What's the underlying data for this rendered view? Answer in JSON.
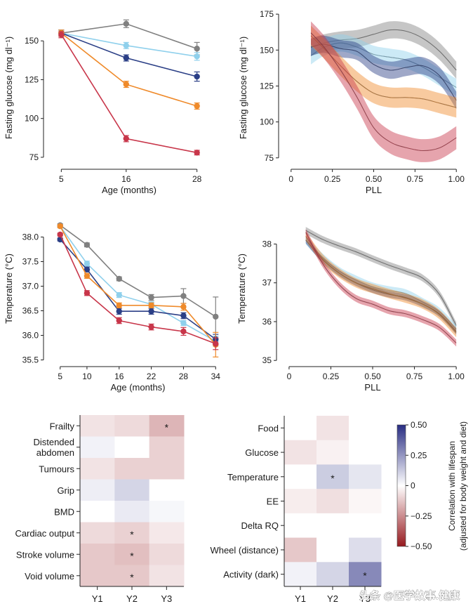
{
  "colors": {
    "grey": "#808080",
    "light_blue": "#8fd0ec",
    "dark_blue": "#2b3f86",
    "orange": "#ef8a2a",
    "red": "#c8364a"
  },
  "watermark": "头条 @医学故事.健康",
  "chart_data": [
    {
      "id": "glucose_age",
      "type": "line",
      "xlabel": "Age (months)",
      "ylabel": "Fasting glucose (mg dl⁻¹)",
      "x": [
        5,
        16,
        28
      ],
      "xticks": [
        "5",
        "16",
        "28"
      ],
      "ylim": [
        70,
        170
      ],
      "yticks": [
        "75",
        "100",
        "125",
        "150"
      ],
      "series": [
        {
          "color": "grey",
          "values": [
            155,
            161,
            145
          ],
          "err": [
            2,
            2.5,
            4
          ]
        },
        {
          "color": "light_blue",
          "values": [
            155,
            147,
            140
          ],
          "err": [
            2,
            2,
            2.5
          ]
        },
        {
          "color": "dark_blue",
          "values": [
            155,
            139,
            127
          ],
          "err": [
            2,
            2,
            3
          ]
        },
        {
          "color": "orange",
          "values": [
            155,
            122,
            108
          ],
          "err": [
            2,
            2,
            2
          ]
        },
        {
          "color": "red",
          "values": [
            154,
            87,
            78
          ],
          "err": [
            2,
            2,
            1.5
          ]
        }
      ]
    },
    {
      "id": "glucose_pll",
      "type": "area",
      "xlabel": "PLL",
      "ylabel": "Fasting glucose (mg dl⁻¹)",
      "xlim": [
        -0.05,
        1.05
      ],
      "xticks": [
        "0",
        "0.25",
        "0.50",
        "0.75",
        "1.00"
      ],
      "ylim": [
        70,
        178
      ],
      "yticks": [
        "75",
        "100",
        "125",
        "150",
        "175"
      ],
      "series": [
        {
          "color": "grey",
          "x": [
            0.12,
            0.2,
            0.3,
            0.4,
            0.5,
            0.6,
            0.7,
            0.8,
            0.9,
            1.0
          ],
          "values": [
            152,
            155,
            157,
            158,
            161,
            164,
            163,
            158,
            149,
            136
          ],
          "band": 6
        },
        {
          "color": "light_blue",
          "x": [
            0.12,
            0.2,
            0.3,
            0.4,
            0.5,
            0.6,
            0.7,
            0.8,
            0.9,
            1.0
          ],
          "values": [
            146,
            152,
            155,
            152,
            147,
            145,
            143,
            138,
            131,
            124
          ],
          "band": 6
        },
        {
          "color": "dark_blue",
          "x": [
            0.12,
            0.2,
            0.3,
            0.4,
            0.5,
            0.6,
            0.7,
            0.8,
            0.9,
            1.0
          ],
          "values": [
            152,
            154,
            151,
            149,
            140,
            136,
            138,
            139,
            132,
            115
          ],
          "band": 6
        },
        {
          "color": "orange",
          "x": [
            0.12,
            0.2,
            0.3,
            0.4,
            0.5,
            0.6,
            0.7,
            0.8,
            0.9,
            1.0
          ],
          "values": [
            160,
            151,
            139,
            128,
            120,
            117,
            117,
            116,
            113,
            110
          ],
          "band": 7
        },
        {
          "color": "red",
          "x": [
            0.12,
            0.2,
            0.3,
            0.4,
            0.5,
            0.6,
            0.7,
            0.8,
            0.9,
            1.0
          ],
          "values": [
            162,
            152,
            136,
            117,
            96,
            86,
            82,
            80,
            82,
            89
          ],
          "band": 8
        }
      ]
    },
    {
      "id": "temperature_age",
      "type": "line",
      "xlabel": "Age (months)",
      "ylabel": "Temperature (°C)",
      "x": [
        5,
        10,
        16,
        22,
        28,
        34
      ],
      "xticks": [
        "5",
        "10",
        "16",
        "22",
        "28",
        "34"
      ],
      "ylim": [
        35.45,
        38.45
      ],
      "yticks": [
        "35.5",
        "36.0",
        "36.5",
        "37.0",
        "37.5",
        "38.0"
      ],
      "series": [
        {
          "color": "grey",
          "values": [
            38.24,
            37.84,
            37.15,
            36.77,
            36.8,
            36.38
          ],
          "err": [
            0.03,
            0.04,
            0.04,
            0.06,
            0.15,
            0.4
          ]
        },
        {
          "color": "light_blue",
          "values": [
            38.22,
            37.46,
            36.82,
            36.63,
            36.25,
            35.88
          ],
          "err": [
            0.03,
            0.05,
            0.05,
            0.05,
            0.05,
            0.1
          ]
        },
        {
          "color": "dark_blue",
          "values": [
            37.95,
            37.34,
            36.49,
            36.49,
            36.4,
            35.92
          ],
          "err": [
            0.03,
            0.05,
            0.06,
            0.06,
            0.06,
            0.1
          ]
        },
        {
          "color": "orange",
          "values": [
            38.22,
            37.21,
            36.61,
            36.61,
            36.58,
            35.81
          ],
          "err": [
            0.03,
            0.05,
            0.05,
            0.05,
            0.07,
            0.25
          ]
        },
        {
          "color": "red",
          "values": [
            38.05,
            36.86,
            36.3,
            36.17,
            36.08,
            35.83
          ],
          "err": [
            0.03,
            0.05,
            0.06,
            0.06,
            0.08,
            0.12
          ]
        }
      ]
    },
    {
      "id": "temperature_pll",
      "type": "area",
      "xlabel": "PLL",
      "ylabel": "Temperature (°C)",
      "xlim": [
        -0.05,
        1.05
      ],
      "xticks": [
        "0",
        "0.25",
        "0.50",
        "0.75",
        "1.00"
      ],
      "ylim": [
        34.95,
        38.75
      ],
      "yticks": [
        "35",
        "36",
        "37",
        "38"
      ],
      "series": [
        {
          "color": "grey",
          "x": [
            0.1,
            0.2,
            0.3,
            0.4,
            0.5,
            0.6,
            0.7,
            0.8,
            0.9,
            1.0
          ],
          "values": [
            38.35,
            38.12,
            37.95,
            37.8,
            37.62,
            37.45,
            37.3,
            37.12,
            36.7,
            35.9
          ],
          "band": 0.09
        },
        {
          "color": "light_blue",
          "x": [
            0.1,
            0.2,
            0.3,
            0.4,
            0.5,
            0.6,
            0.7,
            0.8,
            0.9,
            1.0
          ],
          "values": [
            38.1,
            37.65,
            37.3,
            37.08,
            36.9,
            36.8,
            36.72,
            36.5,
            36.25,
            35.8
          ],
          "band": 0.11
        },
        {
          "color": "dark_blue",
          "x": [
            0.1,
            0.2,
            0.3,
            0.4,
            0.5,
            0.6,
            0.7,
            0.8,
            0.9,
            1.0
          ],
          "values": [
            38.1,
            37.6,
            37.25,
            37.0,
            36.82,
            36.7,
            36.62,
            36.45,
            36.2,
            35.75
          ],
          "band": 0.08
        },
        {
          "color": "orange",
          "x": [
            0.1,
            0.2,
            0.3,
            0.4,
            0.5,
            0.6,
            0.7,
            0.8,
            0.9,
            1.0
          ],
          "values": [
            38.2,
            37.62,
            37.25,
            37.0,
            36.85,
            36.72,
            36.6,
            36.45,
            36.18,
            35.72
          ],
          "band": 0.12
        },
        {
          "color": "red",
          "x": [
            0.1,
            0.2,
            0.3,
            0.4,
            0.5,
            0.6,
            0.7,
            0.8,
            0.9,
            1.0
          ],
          "values": [
            38.3,
            37.5,
            36.95,
            36.6,
            36.45,
            36.28,
            36.2,
            36.05,
            35.85,
            35.45
          ],
          "band": 0.09
        }
      ]
    },
    {
      "id": "heatmap_phenotypes",
      "type": "heatmap",
      "columns": [
        "Y1",
        "Y2",
        "Y3"
      ],
      "rows": [
        "Frailty",
        "Distended\nabdomen",
        "Tumours",
        "Grip",
        "BMD",
        "Cardiac output",
        "Stroke volume",
        "Void volume"
      ],
      "values": [
        [
          -0.06,
          -0.08,
          -0.16
        ],
        [
          0.03,
          0,
          -0.1
        ],
        [
          -0.06,
          -0.1,
          -0.1
        ],
        [
          0.04,
          0.1,
          0
        ],
        [
          0,
          0.05,
          0.02
        ],
        [
          -0.08,
          -0.1,
          -0.05
        ],
        [
          -0.12,
          -0.14,
          -0.08
        ],
        [
          -0.12,
          -0.12,
          -0.06
        ]
      ],
      "stars": [
        [
          0,
          2
        ],
        [
          5,
          1
        ],
        [
          6,
          1
        ],
        [
          7,
          1
        ]
      ]
    },
    {
      "id": "heatmap_metabolic",
      "type": "heatmap",
      "columns": [
        "Y1",
        "Y2",
        "Y3"
      ],
      "rows": [
        "Food",
        "Glucose",
        "Temperature",
        "EE",
        "Delta RQ",
        "Wheel (distance)",
        "Activity (dark)"
      ],
      "values": [
        [
          0,
          -0.06,
          0
        ],
        [
          -0.06,
          -0.03,
          0
        ],
        [
          0,
          0.12,
          0.06
        ],
        [
          -0.04,
          -0.07,
          -0.02
        ],
        [
          0,
          0,
          0
        ],
        [
          -0.12,
          0,
          0.08
        ],
        [
          0.03,
          0.1,
          0.28
        ]
      ],
      "stars": [
        [
          2,
          1
        ],
        [
          6,
          2
        ]
      ],
      "colorbar": {
        "label": "Correlation with lifespan\n(adjusted for body weight and diet)",
        "ticks": [
          "0.50",
          "0.25",
          "0",
          "−0.25",
          "−0.50"
        ],
        "range": [
          -0.5,
          0.5
        ]
      }
    }
  ]
}
